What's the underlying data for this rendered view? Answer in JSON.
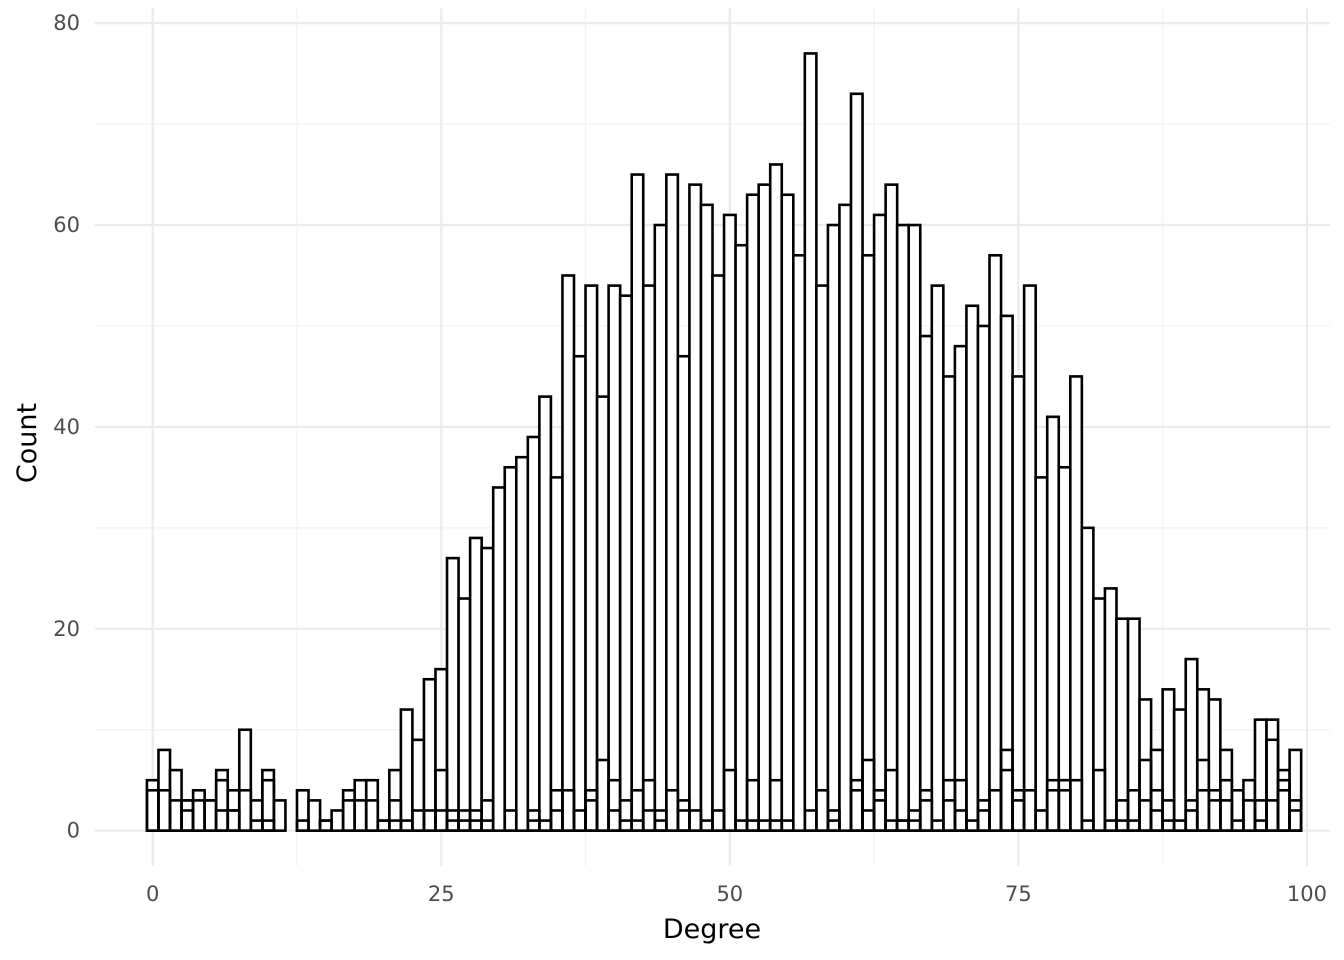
{
  "chart_data": {
    "type": "bar",
    "xlabel": "Degree",
    "ylabel": "Count",
    "xlim": [
      -5,
      102
    ],
    "ylim": [
      -3.5,
      81.5
    ],
    "x_ticks": [
      0,
      25,
      50,
      75,
      100
    ],
    "y_ticks": [
      0,
      20,
      40,
      60,
      80
    ],
    "grid": true,
    "bar_fill": "#ffffff",
    "bar_stroke": "#000000",
    "grid_major_color": "#ebebeb",
    "grid_minor_color": "#f2f2f2",
    "series": [
      {
        "values": [
          [
            0,
            5
          ],
          [
            1,
            8
          ],
          [
            2,
            6
          ],
          [
            3,
            3
          ],
          [
            4,
            4
          ],
          [
            5,
            3
          ],
          [
            6,
            6
          ],
          [
            7,
            4
          ],
          [
            8,
            10
          ],
          [
            9,
            3
          ],
          [
            10,
            6
          ],
          [
            11,
            3
          ],
          [
            12,
            0
          ],
          [
            13,
            4
          ],
          [
            14,
            3
          ],
          [
            15,
            1
          ],
          [
            16,
            2
          ],
          [
            17,
            4
          ],
          [
            18,
            5
          ],
          [
            19,
            5
          ],
          [
            20,
            1
          ],
          [
            21,
            6
          ],
          [
            22,
            12
          ],
          [
            23,
            9
          ],
          [
            24,
            15
          ],
          [
            25,
            16
          ],
          [
            26,
            27
          ],
          [
            27,
            23
          ],
          [
            28,
            29
          ],
          [
            29,
            28
          ],
          [
            30,
            34
          ],
          [
            31,
            36
          ],
          [
            32,
            37
          ],
          [
            33,
            39
          ],
          [
            34,
            43
          ],
          [
            35,
            35
          ],
          [
            36,
            55
          ],
          [
            37,
            47
          ],
          [
            38,
            54
          ],
          [
            39,
            43
          ],
          [
            40,
            54
          ],
          [
            41,
            53
          ],
          [
            42,
            65
          ],
          [
            43,
            54
          ],
          [
            44,
            60
          ],
          [
            45,
            65
          ],
          [
            46,
            47
          ],
          [
            47,
            64
          ],
          [
            48,
            62
          ],
          [
            49,
            55
          ],
          [
            50,
            61
          ],
          [
            51,
            58
          ],
          [
            52,
            63
          ],
          [
            53,
            64
          ],
          [
            54,
            66
          ],
          [
            55,
            63
          ],
          [
            56,
            57
          ],
          [
            57,
            77
          ],
          [
            58,
            54
          ],
          [
            59,
            60
          ],
          [
            60,
            62
          ],
          [
            61,
            73
          ],
          [
            62,
            57
          ],
          [
            63,
            61
          ],
          [
            64,
            64
          ],
          [
            65,
            60
          ],
          [
            66,
            60
          ],
          [
            67,
            49
          ],
          [
            68,
            54
          ],
          [
            69,
            45
          ],
          [
            70,
            48
          ],
          [
            71,
            52
          ],
          [
            72,
            50
          ],
          [
            73,
            57
          ],
          [
            74,
            51
          ],
          [
            75,
            45
          ],
          [
            76,
            54
          ],
          [
            77,
            35
          ],
          [
            78,
            41
          ],
          [
            79,
            36
          ],
          [
            80,
            45
          ],
          [
            81,
            30
          ],
          [
            82,
            23
          ],
          [
            83,
            24
          ],
          [
            84,
            21
          ],
          [
            85,
            21
          ],
          [
            86,
            13
          ],
          [
            87,
            8
          ],
          [
            88,
            14
          ],
          [
            89,
            12
          ],
          [
            90,
            17
          ],
          [
            91,
            14
          ],
          [
            92,
            13
          ],
          [
            93,
            8
          ],
          [
            94,
            4
          ],
          [
            95,
            5
          ],
          [
            96,
            11
          ],
          [
            97,
            11
          ],
          [
            98,
            6
          ],
          [
            99,
            8
          ]
        ]
      },
      {
        "values": [
          [
            0,
            4
          ],
          [
            1,
            4
          ],
          [
            2,
            3
          ],
          [
            3,
            3
          ],
          [
            4,
            3
          ],
          [
            5,
            3
          ],
          [
            6,
            5
          ],
          [
            7,
            2
          ],
          [
            8,
            4
          ],
          [
            9,
            1
          ],
          [
            10,
            5
          ],
          [
            11,
            0
          ],
          [
            12,
            0
          ],
          [
            13,
            1
          ],
          [
            14,
            0
          ],
          [
            15,
            1
          ],
          [
            16,
            0
          ],
          [
            17,
            3
          ],
          [
            18,
            3
          ],
          [
            19,
            3
          ],
          [
            20,
            1
          ],
          [
            21,
            3
          ],
          [
            22,
            1
          ],
          [
            23,
            2
          ],
          [
            24,
            2
          ],
          [
            25,
            6
          ],
          [
            26,
            2
          ],
          [
            27,
            1
          ],
          [
            28,
            2
          ],
          [
            29,
            3
          ],
          [
            30,
            0
          ],
          [
            31,
            2
          ],
          [
            32,
            0
          ],
          [
            33,
            2
          ],
          [
            34,
            1
          ],
          [
            35,
            4
          ],
          [
            36,
            4
          ],
          [
            37,
            2
          ],
          [
            38,
            4
          ],
          [
            39,
            7
          ],
          [
            40,
            5
          ],
          [
            41,
            3
          ],
          [
            42,
            4
          ],
          [
            43,
            5
          ],
          [
            44,
            2
          ],
          [
            45,
            4
          ],
          [
            46,
            3
          ],
          [
            47,
            2
          ],
          [
            48,
            1
          ],
          [
            49,
            2
          ],
          [
            50,
            6
          ],
          [
            51,
            1
          ],
          [
            52,
            5
          ],
          [
            53,
            1
          ],
          [
            54,
            5
          ],
          [
            55,
            1
          ],
          [
            56,
            0
          ],
          [
            57,
            2
          ],
          [
            58,
            4
          ],
          [
            59,
            2
          ],
          [
            60,
            0
          ],
          [
            61,
            5
          ],
          [
            62,
            7
          ],
          [
            63,
            4
          ],
          [
            64,
            6
          ],
          [
            65,
            1
          ],
          [
            66,
            2
          ],
          [
            67,
            4
          ],
          [
            68,
            1
          ],
          [
            69,
            5
          ],
          [
            70,
            5
          ],
          [
            71,
            0
          ],
          [
            72,
            3
          ],
          [
            73,
            4
          ],
          [
            74,
            8
          ],
          [
            75,
            4
          ],
          [
            76,
            4
          ],
          [
            77,
            2
          ],
          [
            78,
            5
          ],
          [
            79,
            5
          ],
          [
            80,
            5
          ],
          [
            81,
            0
          ],
          [
            82,
            6
          ],
          [
            83,
            1
          ],
          [
            84,
            3
          ],
          [
            85,
            4
          ],
          [
            86,
            7
          ],
          [
            87,
            4
          ],
          [
            88,
            3
          ],
          [
            89,
            1
          ],
          [
            90,
            3
          ],
          [
            91,
            7
          ],
          [
            92,
            4
          ],
          [
            93,
            5
          ],
          [
            94,
            1
          ],
          [
            95,
            3
          ],
          [
            96,
            3
          ],
          [
            97,
            9
          ],
          [
            98,
            5
          ],
          [
            99,
            3
          ]
        ]
      },
      {
        "values": [
          [
            0,
            0
          ],
          [
            1,
            0
          ],
          [
            2,
            0
          ],
          [
            3,
            2
          ],
          [
            4,
            0
          ],
          [
            5,
            0
          ],
          [
            6,
            2
          ],
          [
            7,
            2
          ],
          [
            8,
            0
          ],
          [
            9,
            0
          ],
          [
            10,
            1
          ],
          [
            11,
            0
          ],
          [
            12,
            0
          ],
          [
            13,
            0
          ],
          [
            14,
            0
          ],
          [
            15,
            0
          ],
          [
            16,
            0
          ],
          [
            17,
            0
          ],
          [
            18,
            0
          ],
          [
            19,
            0
          ],
          [
            20,
            0
          ],
          [
            21,
            1
          ],
          [
            22,
            0
          ],
          [
            23,
            0
          ],
          [
            24,
            0
          ],
          [
            25,
            2
          ],
          [
            26,
            1
          ],
          [
            27,
            2
          ],
          [
            28,
            1
          ],
          [
            29,
            1
          ],
          [
            30,
            0
          ],
          [
            31,
            0
          ],
          [
            32,
            0
          ],
          [
            33,
            1
          ],
          [
            34,
            0
          ],
          [
            35,
            2
          ],
          [
            36,
            0
          ],
          [
            37,
            0
          ],
          [
            38,
            3
          ],
          [
            39,
            0
          ],
          [
            40,
            2
          ],
          [
            41,
            1
          ],
          [
            42,
            1
          ],
          [
            43,
            2
          ],
          [
            44,
            1
          ],
          [
            45,
            0
          ],
          [
            46,
            2
          ],
          [
            47,
            0
          ],
          [
            48,
            0
          ],
          [
            49,
            0
          ],
          [
            50,
            0
          ],
          [
            51,
            0
          ],
          [
            52,
            1
          ],
          [
            53,
            0
          ],
          [
            54,
            1
          ],
          [
            55,
            0
          ],
          [
            56,
            0
          ],
          [
            57,
            0
          ],
          [
            58,
            0
          ],
          [
            59,
            1
          ],
          [
            60,
            0
          ],
          [
            61,
            4
          ],
          [
            62,
            2
          ],
          [
            63,
            3
          ],
          [
            64,
            1
          ],
          [
            65,
            1
          ],
          [
            66,
            1
          ],
          [
            67,
            3
          ],
          [
            68,
            0
          ],
          [
            69,
            3
          ],
          [
            70,
            2
          ],
          [
            71,
            1
          ],
          [
            72,
            2
          ],
          [
            73,
            0
          ],
          [
            74,
            6
          ],
          [
            75,
            3
          ],
          [
            76,
            0
          ],
          [
            77,
            0
          ],
          [
            78,
            4
          ],
          [
            79,
            4
          ],
          [
            80,
            0
          ],
          [
            81,
            1
          ],
          [
            82,
            0
          ],
          [
            83,
            0
          ],
          [
            84,
            1
          ],
          [
            85,
            1
          ],
          [
            86,
            3
          ],
          [
            87,
            2
          ],
          [
            88,
            1
          ],
          [
            89,
            0
          ],
          [
            90,
            2
          ],
          [
            91,
            4
          ],
          [
            92,
            3
          ],
          [
            93,
            3
          ],
          [
            94,
            0
          ],
          [
            95,
            0
          ],
          [
            96,
            1
          ],
          [
            97,
            3
          ],
          [
            98,
            4
          ],
          [
            99,
            2
          ]
        ]
      }
    ]
  }
}
